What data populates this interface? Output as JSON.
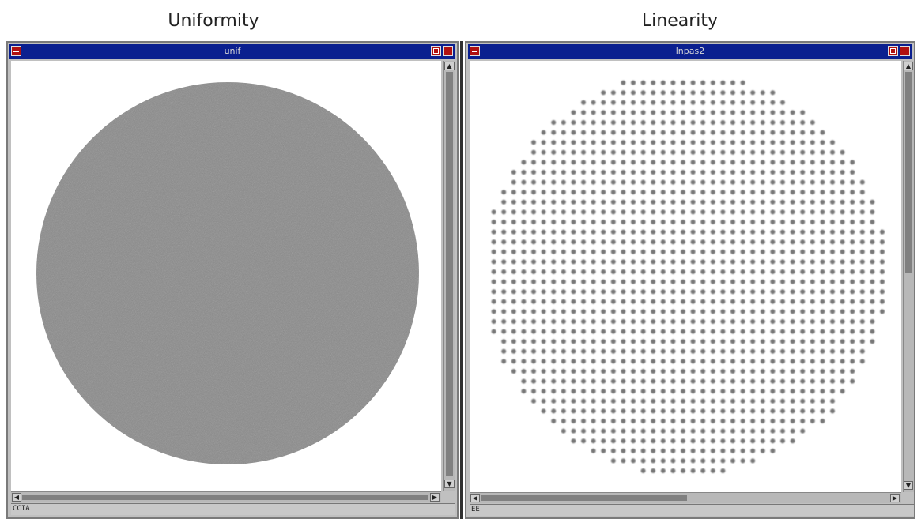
{
  "captions": {
    "left": "Uniformity",
    "right": "Linearity"
  },
  "windows": {
    "left": {
      "title": "unif",
      "status": "CCIA"
    },
    "right": {
      "title": "lnpas2",
      "status": "EE"
    }
  },
  "colors": {
    "titlebar": "#0a1f8f",
    "titlebar_button": "#b01010",
    "disk_fill": "#8a8a8a",
    "dot_fill": "#777777",
    "frame": "#c0c0c0"
  },
  "icons": {
    "system_menu": "minus-icon",
    "maximize": "square-icon",
    "scroll_up": "arrow-up-icon",
    "scroll_down": "arrow-down-icon",
    "scroll_left": "arrow-left-icon",
    "scroll_right": "arrow-right-icon"
  }
}
